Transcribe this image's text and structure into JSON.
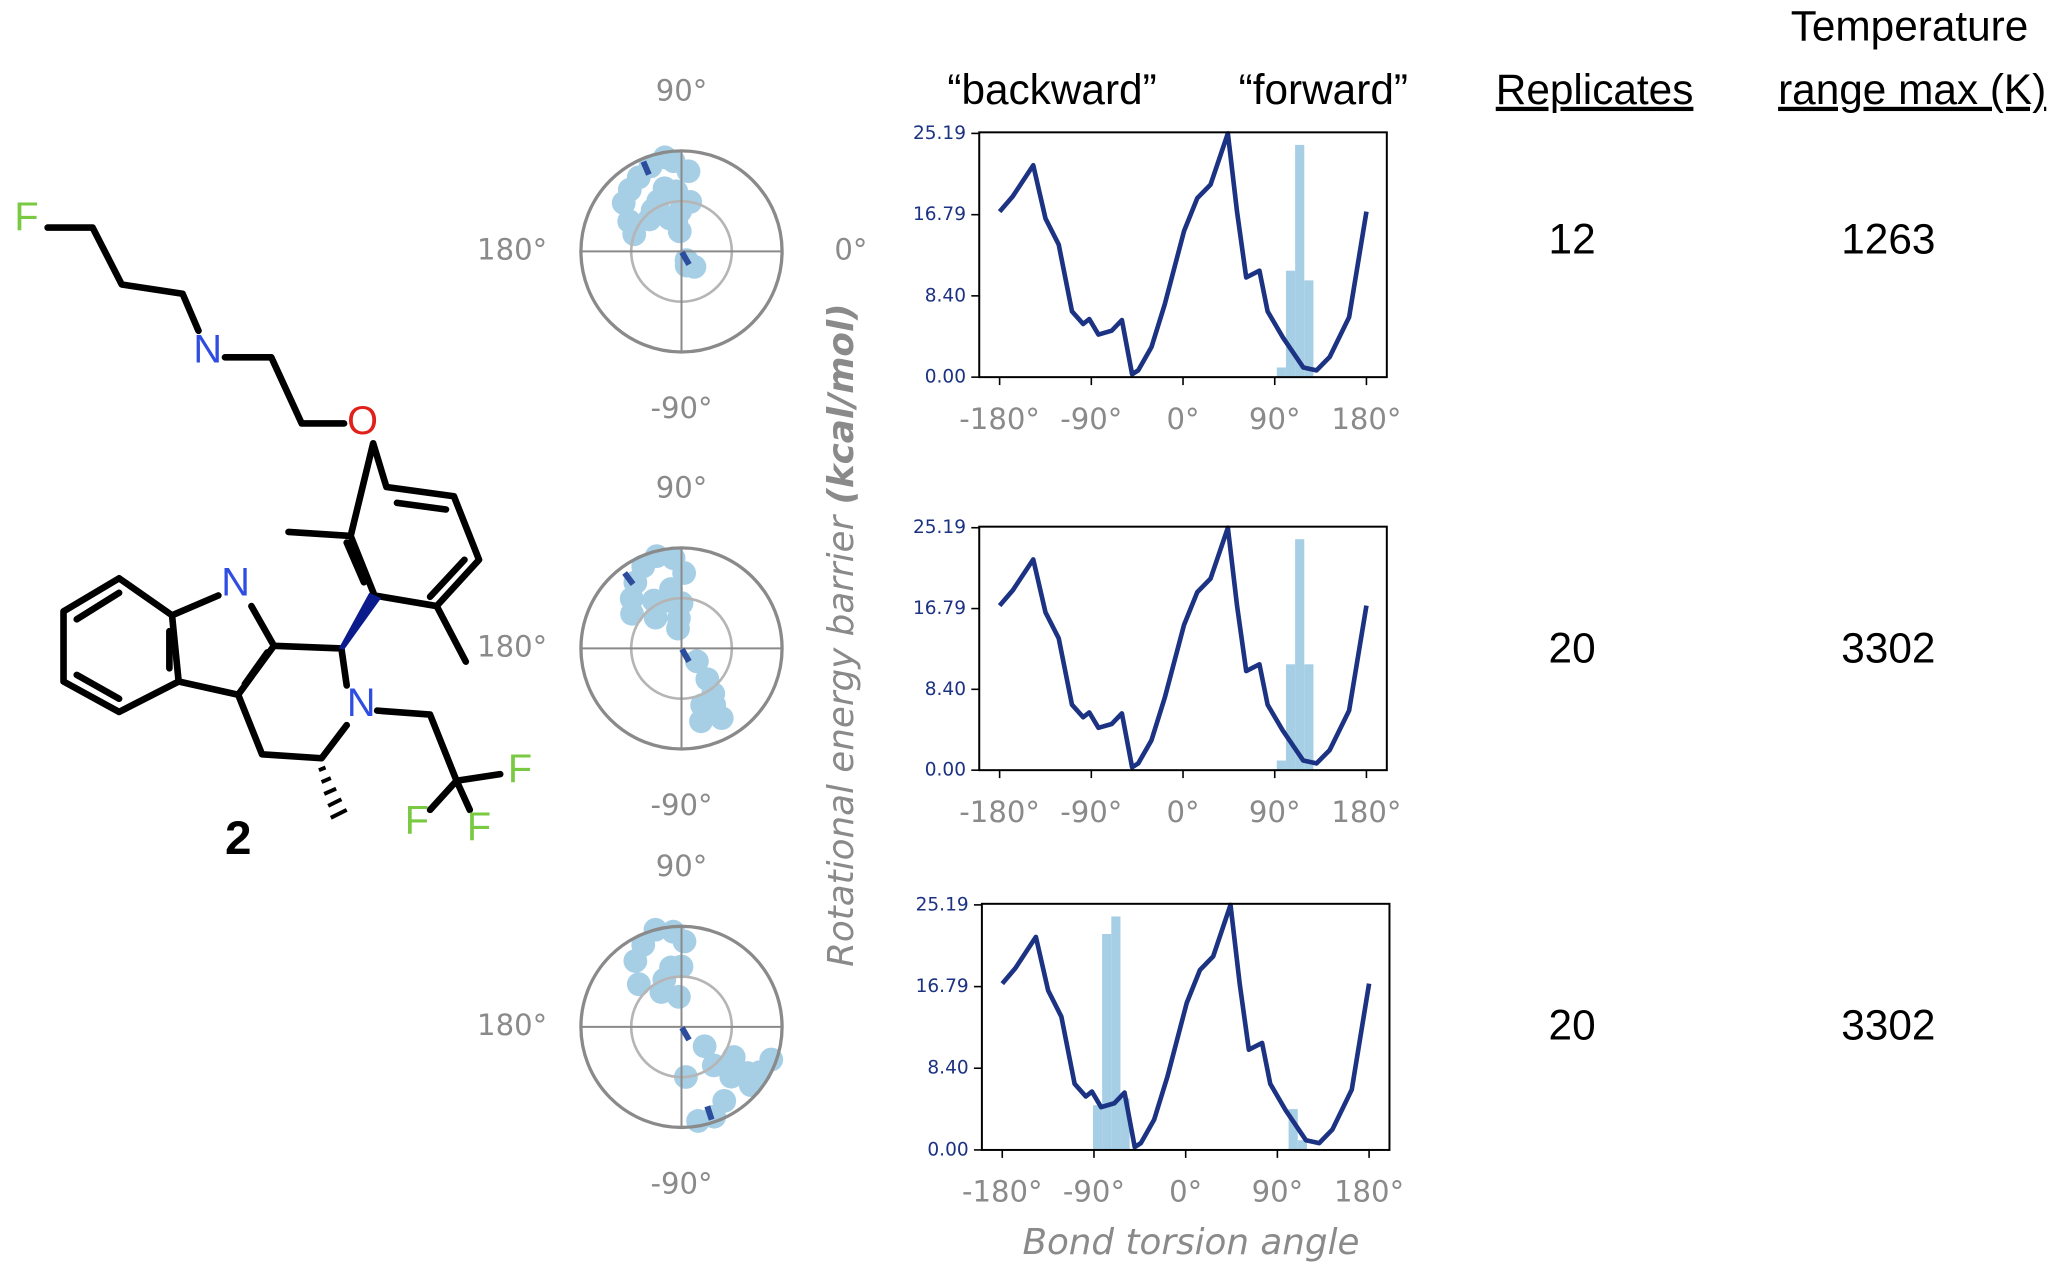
{
  "molecule": {
    "labels": [
      "F",
      "N",
      "O",
      "N",
      "N",
      "F",
      "F",
      "F"
    ],
    "compound": "2"
  },
  "headers": {
    "backward": "“backward”",
    "forward": "“forward”",
    "replicates": "Replicates",
    "temperature": [
      "Temperature",
      "range max (K)"
    ]
  },
  "axis_labels": {
    "y": [
      "Rotational  energy barrier ",
      "(kcal/mol)"
    ],
    "x": "Bond torsion angle"
  },
  "table": {
    "rows": [
      [
        12,
        1263
      ],
      [
        20,
        3302
      ],
      [
        20,
        3302
      ]
    ]
  },
  "chart_data": [
    {
      "type": "line",
      "color": "#1c3282",
      "x": [
        -180,
        -167,
        -147,
        -135,
        -122,
        -109,
        -98,
        -92,
        -83,
        -70,
        -60,
        -50,
        -44,
        -31,
        -18,
        1,
        14,
        27,
        44,
        53,
        62,
        75,
        83,
        98,
        118,
        131,
        144,
        163,
        180
      ],
      "values": [
        17.1,
        18.7,
        21.9,
        16.4,
        13.7,
        6.8,
        5.5,
        6.0,
        4.4,
        4.8,
        5.9,
        0.3,
        0.7,
        3.1,
        7.5,
        15.1,
        18.5,
        19.9,
        25.19,
        17.1,
        10.3,
        11.0,
        6.8,
        4.1,
        1.0,
        0.7,
        2.1,
        6.2,
        17.1
      ],
      "hist": [
        {
          "color": "#a6cfe6",
          "bins": [
            92,
            101,
            110,
            119,
            128
          ],
          "values": [
            1,
            11,
            24,
            10
          ]
        }
      ],
      "xlim": [
        -200,
        200
      ],
      "ylim": [
        0,
        25.3
      ],
      "xticks": [
        {
          "value": -180,
          "label": "-180°"
        },
        {
          "value": -90,
          "label": "-90°"
        },
        {
          "value": 0,
          "label": "0°"
        },
        {
          "value": 90,
          "label": "90°"
        },
        {
          "value": 180,
          "label": "180°"
        }
      ],
      "yticks": [
        {
          "value": 0,
          "label": "0.00"
        },
        {
          "value": 8.4,
          "label": "8.40"
        },
        16.79,
        25.19
      ]
    },
    {
      "type": "line",
      "color": "#1c3282",
      "x": [
        -180,
        -167,
        -147,
        -135,
        -122,
        -109,
        -98,
        -92,
        -83,
        -70,
        -60,
        -50,
        -44,
        -31,
        -18,
        1,
        14,
        27,
        44,
        53,
        62,
        75,
        83,
        98,
        118,
        131,
        144,
        163,
        180
      ],
      "values": [
        17.1,
        18.7,
        21.9,
        16.4,
        13.7,
        6.8,
        5.5,
        6.0,
        4.4,
        4.8,
        5.9,
        0.3,
        0.7,
        3.1,
        7.5,
        15.1,
        18.5,
        19.9,
        25.19,
        17.1,
        10.3,
        11.0,
        6.8,
        4.1,
        1.0,
        0.7,
        2.1,
        6.2,
        17.1
      ],
      "hist": [
        {
          "color": "#a6cfe6",
          "bins": [
            92,
            101,
            110,
            119,
            128
          ],
          "values": [
            1,
            11,
            24,
            11
          ]
        }
      ],
      "xlim": [
        -200,
        200
      ],
      "ylim": [
        0,
        25.3
      ],
      "xticks": [
        {
          "value": -180,
          "label": "-180°"
        },
        {
          "value": -90,
          "label": "-90°"
        },
        {
          "value": 0,
          "label": "0°"
        },
        {
          "value": 90,
          "label": "90°"
        },
        {
          "value": 180,
          "label": "180°"
        }
      ],
      "yticks": [
        {
          "value": 0,
          "label": "0.00"
        },
        {
          "value": 8.4,
          "label": "8.40"
        },
        16.79,
        25.19
      ]
    },
    {
      "type": "line",
      "color": "#1c3282",
      "x": [
        -180,
        -167,
        -147,
        -135,
        -122,
        -109,
        -98,
        -92,
        -83,
        -70,
        -60,
        -50,
        -44,
        -31,
        -18,
        1,
        14,
        27,
        44,
        53,
        62,
        75,
        83,
        98,
        118,
        131,
        144,
        163,
        180
      ],
      "values": [
        17.1,
        18.7,
        21.9,
        16.4,
        13.7,
        6.8,
        5.5,
        6.0,
        4.4,
        4.8,
        5.9,
        0.3,
        0.7,
        3.1,
        7.5,
        15.1,
        18.5,
        19.9,
        25.19,
        17.1,
        10.3,
        11.0,
        6.8,
        4.1,
        1.0,
        0.7,
        2.1,
        6.2,
        17.1
      ],
      "hist": [
        {
          "color": "#a6cfe6",
          "bins": [
            -91,
            -82,
            -73,
            -64,
            -55
          ],
          "values": [
            4.6,
            22.2,
            24,
            5.3
          ]
        },
        {
          "color": "#a6cfe6",
          "bins": [
            101,
            110,
            119
          ],
          "values": [
            4.2,
            1
          ]
        }
      ],
      "xlim": [
        -200,
        200
      ],
      "ylim": [
        0,
        25.3
      ],
      "xticks": [
        {
          "value": -180,
          "label": "-180°"
        },
        {
          "value": -90,
          "label": "-90°"
        },
        {
          "value": 0,
          "label": "0°"
        },
        {
          "value": 90,
          "label": "90°"
        },
        {
          "value": 180,
          "label": "180°"
        }
      ],
      "yticks": [
        {
          "value": 0,
          "label": "0.00"
        },
        {
          "value": 8.4,
          "label": "8.40"
        },
        16.79,
        25.19
      ]
    },
    {
      "type": "polar",
      "color": "#a6cfe6",
      "marker_color": "#2c4c9c",
      "theta": [
        95,
        100,
        110,
        120,
        130,
        140,
        150,
        160,
        95,
        105,
        115,
        125,
        135,
        100,
        110,
        95,
        92,
        85,
        80,
        -60,
        -50,
        -70
      ],
      "r": [
        0.9,
        0.95,
        0.9,
        0.85,
        0.8,
        0.75,
        0.6,
        0.5,
        0.6,
        0.65,
        0.55,
        0.5,
        0.45,
        0.3,
        0.35,
        0.2,
        0.4,
        0.8,
        0.5,
        0.1,
        0.2,
        0.15
      ],
      "markers": {
        "theta": [
          113,
          -60
        ],
        "r": [
          0.9,
          0.08
        ]
      },
      "rlim": [
        0,
        1
      ],
      "rticks": [
        0.5,
        1
      ],
      "angle_ticks": [
        {
          "value": 90,
          "label": "90°"
        },
        {
          "value": 0,
          "label": "0°"
        },
        {
          "value": 180,
          "label": "180°"
        },
        {
          "value": -90,
          "label": "-90°"
        }
      ]
    },
    {
      "type": "polar",
      "color": "#a6cfe6",
      "marker_color": "#2c4c9c",
      "theta": [
        95,
        105,
        115,
        125,
        135,
        145,
        100,
        110,
        120,
        130,
        95,
        100,
        90,
        88,
        -40,
        -50,
        -55,
        -60,
        -65,
        -70,
        -60,
        -75
      ],
      "r": [
        0.9,
        0.95,
        0.9,
        0.8,
        0.7,
        0.6,
        0.6,
        0.5,
        0.55,
        0.4,
        0.3,
        0.2,
        0.45,
        0.75,
        0.2,
        0.4,
        0.55,
        0.65,
        0.7,
        0.6,
        0.8,
        0.75
      ],
      "markers": {
        "theta": [
          127,
          -60
        ],
        "r": [
          0.87,
          0.08
        ]
      },
      "rlim": [
        0,
        1
      ],
      "rticks": [
        0.5,
        1
      ],
      "angle_ticks": [
        {
          "value": 90,
          "label": "90°"
        },
        {
          "value": 180,
          "label": "180°"
        },
        {
          "value": -90,
          "label": "-90°"
        }
      ]
    },
    {
      "type": "polar",
      "color": "#a6cfe6",
      "marker_color": "#2c4c9c",
      "theta": [
        95,
        105,
        115,
        125,
        135,
        100,
        110,
        120,
        95,
        90,
        88,
        -30,
        -35,
        -40,
        -45,
        -50,
        -60,
        -70,
        -80,
        -85,
        -40,
        -30,
        -20
      ],
      "r": [
        0.95,
        1.0,
        0.9,
        0.8,
        0.6,
        0.6,
        0.5,
        0.4,
        0.3,
        0.6,
        0.85,
        0.6,
        0.8,
        0.9,
        0.7,
        0.5,
        0.85,
        0.95,
        0.95,
        0.5,
        0.3,
        0.9,
        0.95
      ],
      "markers": {
        "theta": [
          -72,
          -60
        ],
        "r": [
          0.9,
          0.08
        ]
      },
      "rlim": [
        0,
        1
      ],
      "rticks": [
        0.5,
        1
      ],
      "angle_ticks": [
        {
          "value": 90,
          "label": "90°"
        },
        {
          "value": 180,
          "label": "180°"
        },
        {
          "value": -90,
          "label": "-90°"
        }
      ]
    }
  ]
}
